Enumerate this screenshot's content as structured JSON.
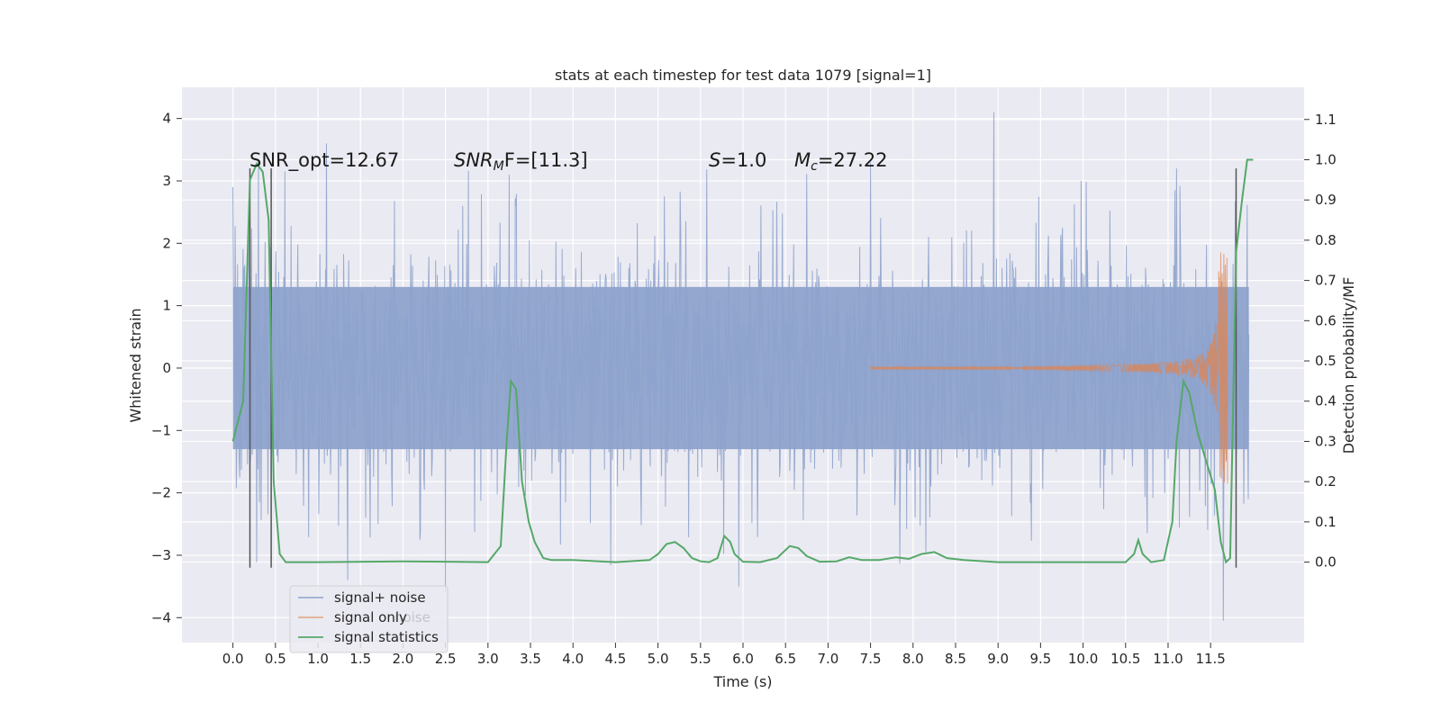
{
  "chart_data": {
    "type": "line",
    "title": "stats at each timestep for test data 1079 [signal=1]",
    "xlabel": "Time (s)",
    "ylabel_left": "Whitened strain",
    "ylabel_right": "Detection probability/MF",
    "xlim": [
      -0.6,
      12.6
    ],
    "ylim_left": [
      -4.4,
      4.5
    ],
    "ylim_right": [
      -0.2,
      1.18
    ],
    "x_ticks": [
      0.0,
      0.5,
      1.0,
      1.5,
      2.0,
      2.5,
      3.0,
      3.5,
      4.0,
      4.5,
      5.0,
      5.5,
      6.0,
      6.5,
      7.0,
      7.5,
      8.0,
      8.5,
      9.0,
      9.5,
      10.0,
      10.5,
      11.0,
      11.5
    ],
    "x_tick_labels": [
      "0.0",
      "0.5",
      "1.0",
      "1.5",
      "2.0",
      "2.5",
      "3.0",
      "3.5",
      "4.0",
      "4.5",
      "5.0",
      "5.5",
      "6.0",
      "6.5",
      "7.0",
      "7.5",
      "8.0",
      "8.5",
      "9.0",
      "9.5",
      "10.0",
      "10.5",
      "11.0",
      "11.5"
    ],
    "y_left_ticks": [
      -4,
      -3,
      -2,
      -1,
      0,
      1,
      2,
      3,
      4
    ],
    "y_left_tick_labels": [
      "−4",
      "−3",
      "−2",
      "−1",
      "0",
      "1",
      "2",
      "3",
      "4"
    ],
    "y_right_ticks": [
      0.0,
      0.1,
      0.2,
      0.3,
      0.4,
      0.5,
      0.6,
      0.7,
      0.8,
      0.9,
      1.0,
      1.1
    ],
    "y_right_tick_labels": [
      "0.0",
      "0.1",
      "0.2",
      "0.3",
      "0.4",
      "0.5",
      "0.6",
      "0.7",
      "0.8",
      "0.9",
      "1.0",
      "1.1"
    ],
    "grid": true,
    "legend_placement": "lower-left",
    "colors": {
      "background": "#eaeaf2",
      "grid": "#ffffff",
      "noise": "#8ea3cc",
      "signal": "#dd8452",
      "stat": "#55a868",
      "marker": "#555555"
    },
    "series": [
      {
        "name": "signal+ noise",
        "color": "#4c72b0",
        "description_range": [
          0.0,
          11.95
        ],
        "core_band": [
          -1.3,
          1.3
        ],
        "representative_peaks": [
          {
            "x": 0.0,
            "y": 2.9
          },
          {
            "x": 0.3,
            "y": 3.3
          },
          {
            "x": 1.1,
            "y": 3.6
          },
          {
            "x": 3.25,
            "y": 3.1
          },
          {
            "x": 7.5,
            "y": 3.3
          },
          {
            "x": 8.95,
            "y": 4.1
          },
          {
            "x": 11.1,
            "y": 3.2
          },
          {
            "x": 1.35,
            "y": -3.4
          },
          {
            "x": 2.5,
            "y": -3.6
          },
          {
            "x": 5.95,
            "y": -3.5
          },
          {
            "x": 11.65,
            "y": -4.05
          }
        ]
      },
      {
        "name": "signal only",
        "color": "#dd8452",
        "description": "chirp starting ~7.5 s growing to ~±2.5 at ~11.6 s"
      },
      {
        "name": "signal statistics",
        "color": "#55a868",
        "x": [
          0.0,
          0.12,
          0.2,
          0.28,
          0.35,
          0.42,
          0.48,
          0.55,
          0.62,
          0.7,
          1.0,
          2.0,
          3.0,
          3.15,
          3.22,
          3.27,
          3.33,
          3.4,
          3.48,
          3.55,
          3.65,
          3.75,
          4.0,
          4.5,
          4.9,
          5.0,
          5.1,
          5.2,
          5.3,
          5.4,
          5.5,
          5.6,
          5.7,
          5.78,
          5.85,
          5.9,
          6.0,
          6.2,
          6.4,
          6.55,
          6.65,
          6.75,
          6.9,
          7.1,
          7.25,
          7.4,
          7.6,
          7.8,
          7.95,
          8.1,
          8.25,
          8.4,
          8.6,
          9.0,
          10.0,
          10.5,
          10.6,
          10.65,
          10.7,
          10.8,
          10.95,
          11.05,
          11.1,
          11.18,
          11.25,
          11.35,
          11.45,
          11.55,
          11.62,
          11.68,
          11.73,
          11.8,
          11.87,
          11.93,
          12.0
        ],
        "values": [
          0.3,
          0.4,
          0.95,
          0.99,
          0.97,
          0.85,
          0.2,
          0.02,
          0.0,
          0.0,
          0.0,
          0.002,
          0.0,
          0.04,
          0.3,
          0.45,
          0.43,
          0.2,
          0.1,
          0.05,
          0.01,
          0.005,
          0.005,
          0.0,
          0.005,
          0.02,
          0.045,
          0.05,
          0.035,
          0.01,
          0.002,
          0.0,
          0.01,
          0.065,
          0.05,
          0.02,
          0.001,
          0.0,
          0.01,
          0.04,
          0.035,
          0.015,
          0.001,
          0.002,
          0.012,
          0.005,
          0.005,
          0.012,
          0.008,
          0.02,
          0.025,
          0.01,
          0.005,
          0.0,
          0.0,
          0.0,
          0.02,
          0.055,
          0.02,
          0.0,
          0.005,
          0.1,
          0.3,
          0.45,
          0.42,
          0.32,
          0.25,
          0.18,
          0.05,
          0.0,
          0.01,
          0.77,
          0.9,
          1.0,
          1.0
        ]
      }
    ],
    "vertical_markers": [
      {
        "x": 0.2,
        "y_top": 3.2,
        "y_bottom": -3.2
      },
      {
        "x": 0.45,
        "y_top": 3.2,
        "y_bottom": -3.2
      },
      {
        "x": 11.8,
        "y_top": 3.2,
        "y_bottom": -3.2
      }
    ],
    "annotations": {
      "snr_opt": "SNR_opt=12.67",
      "snr_mf_main": "SNR",
      "snr_mf_sub": "M",
      "snr_mf_tail": "F=[11.3]",
      "s_main": "S",
      "s_tail": "=1.0",
      "mc_main": "M",
      "mc_sub": "c",
      "mc_tail": "=27.22"
    },
    "legend": [
      {
        "label": "signal+ noise",
        "color": "#8ea3cc"
      },
      {
        "label": "signal only",
        "color": "#dd8452"
      },
      {
        "label": "signal statistics",
        "color": "#55a868"
      }
    ],
    "legend_ghost_text": "noise"
  }
}
